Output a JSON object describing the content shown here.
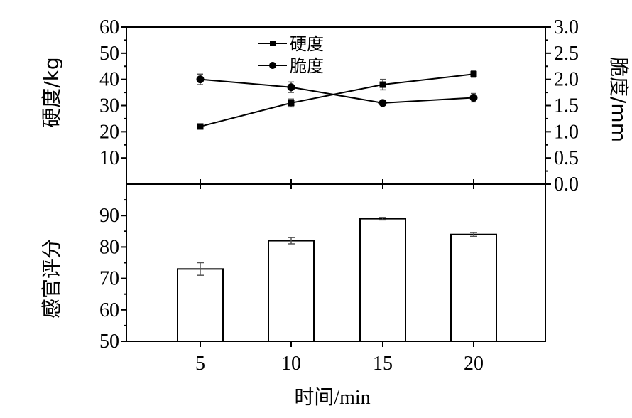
{
  "chart_data": [
    {
      "type": "line",
      "x": [
        5,
        10,
        15,
        20
      ],
      "series": [
        {
          "name": "硬度",
          "axis": "left",
          "marker": "square",
          "values": [
            22,
            31,
            38,
            42
          ],
          "errors": [
            0,
            1.5,
            2,
            1.2
          ]
        },
        {
          "name": "脆度",
          "axis": "right",
          "marker": "circle",
          "values": [
            2.0,
            1.85,
            1.55,
            1.65
          ],
          "errors": [
            0.1,
            0.1,
            0.04,
            0.08
          ]
        }
      ],
      "ylabel_left": "硬度/kg",
      "ylabel_right": "脆度/mm",
      "ylim_left": [
        0,
        60
      ],
      "yticks_left": [
        "10",
        "20",
        "30",
        "40",
        "50",
        "60"
      ],
      "ylim_right": [
        0,
        3.0
      ],
      "yticks_right": [
        "0.0",
        "0.5",
        "1.0",
        "1.5",
        "2.0",
        "2.5",
        "3.0"
      ],
      "legend_position": "top-center",
      "grid": false
    },
    {
      "type": "bar",
      "categories": [
        "5",
        "10",
        "15",
        "20"
      ],
      "values": [
        73,
        82,
        89,
        84
      ],
      "errors": [
        2,
        1,
        0.4,
        0.6
      ],
      "ylabel": "感官评分",
      "ylim": [
        50,
        100
      ],
      "yticks": [
        "50",
        "60",
        "70",
        "80",
        "90"
      ],
      "xlabel_cn": "时间",
      "xlabel_unit": "/min",
      "grid": false
    }
  ]
}
